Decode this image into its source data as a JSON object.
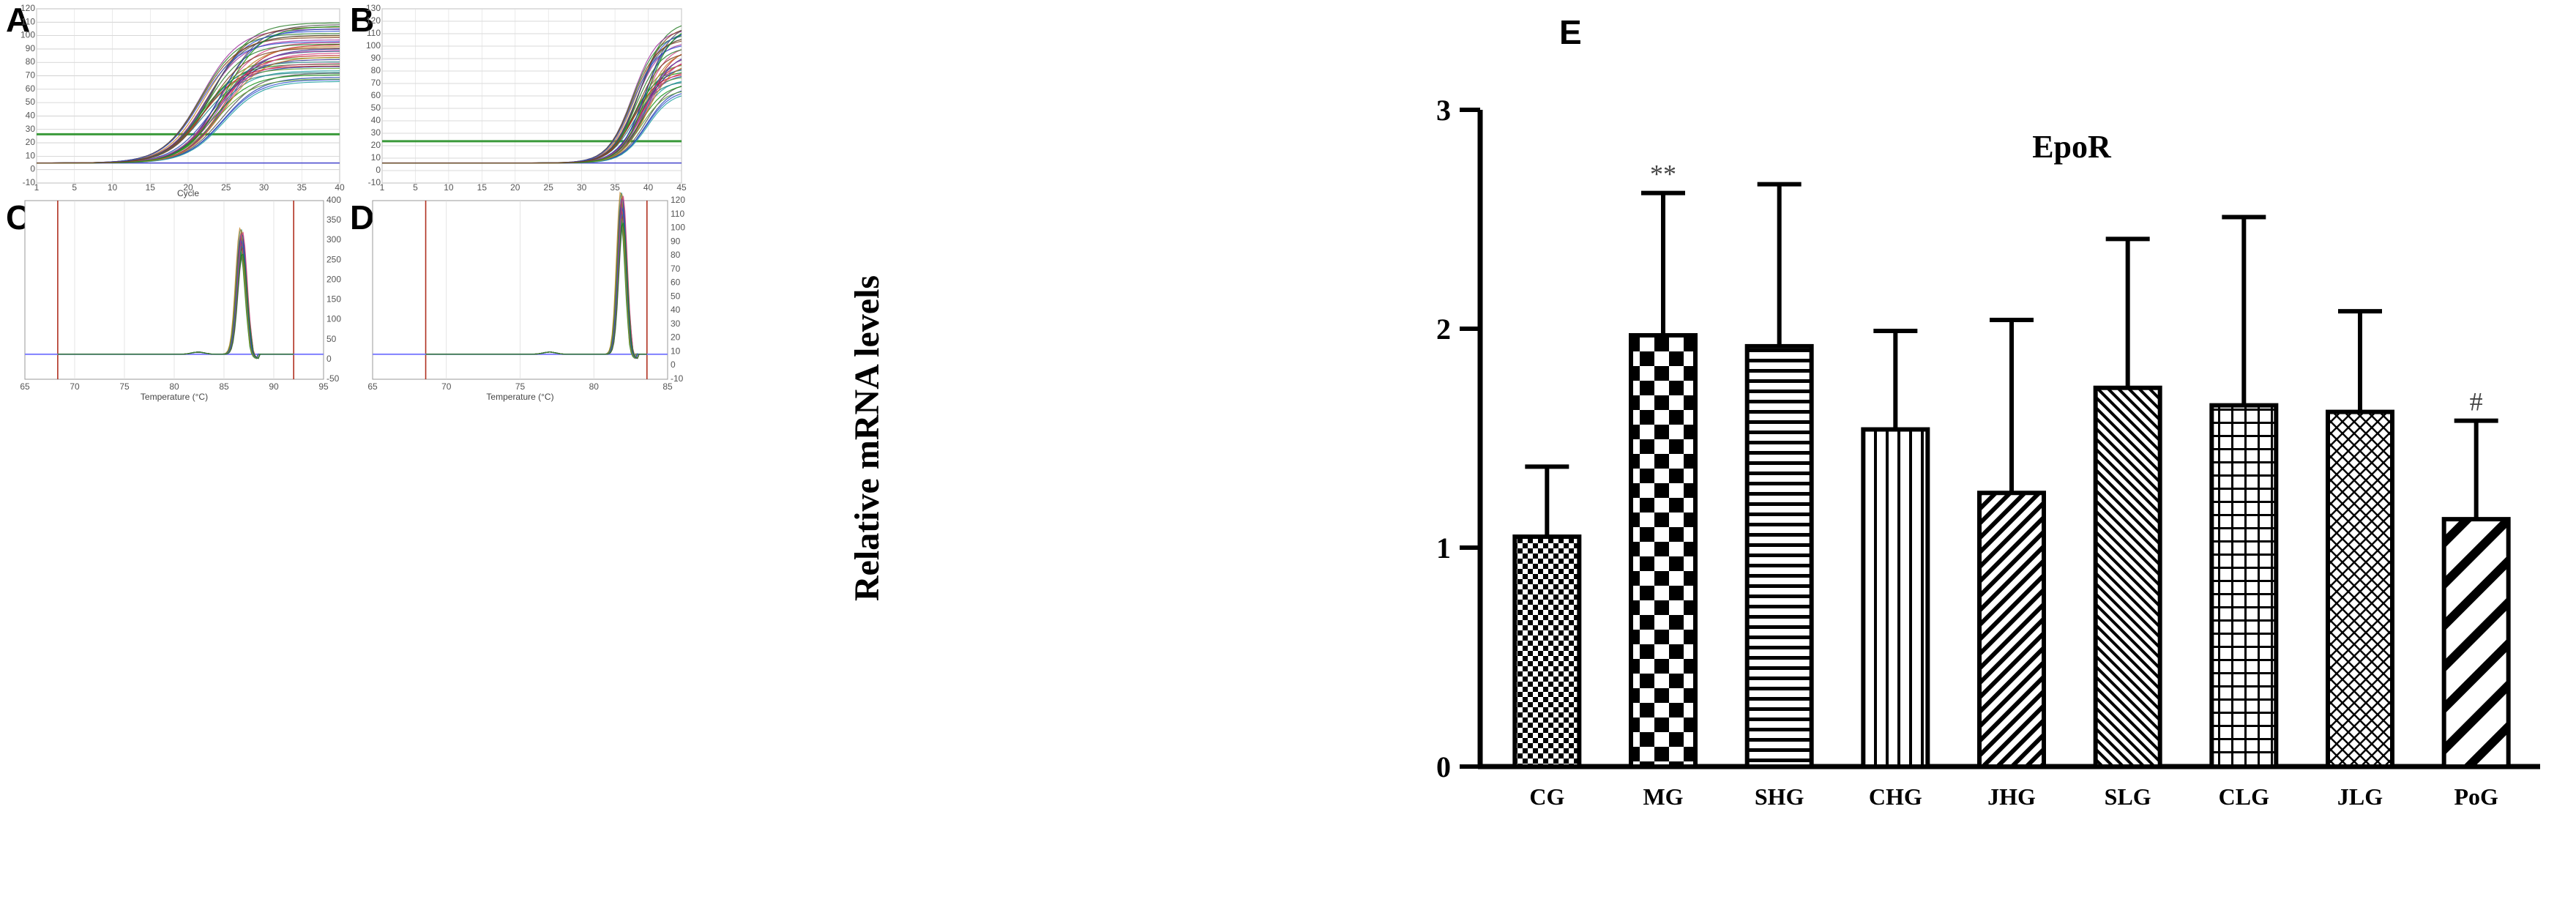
{
  "panels": {
    "A": {
      "label": "A",
      "xlabel": "Cycle",
      "xticks": [
        "1",
        "5",
        "10",
        "15",
        "20",
        "25",
        "30",
        "35",
        "40"
      ],
      "yticks": [
        "120",
        "110",
        "100",
        "90",
        "80",
        "70",
        "60",
        "50",
        "40",
        "30",
        "20",
        "10",
        "0",
        "-10"
      ]
    },
    "B": {
      "label": "B",
      "xticks": [
        "1",
        "5",
        "10",
        "15",
        "20",
        "25",
        "30",
        "35",
        "40",
        "45"
      ],
      "yticks": [
        "130",
        "120",
        "110",
        "100",
        "90",
        "80",
        "70",
        "60",
        "50",
        "40",
        "30",
        "20",
        "10",
        "0",
        "-10"
      ]
    },
    "C": {
      "label": "C",
      "xlabel": "Temperature (°C)",
      "xticks": [
        "65",
        "70",
        "75",
        "80",
        "85",
        "90",
        "95"
      ],
      "yticks": [
        "400",
        "350",
        "300",
        "250",
        "200",
        "150",
        "100",
        "50",
        "0",
        "-50"
      ]
    },
    "D": {
      "label": "D",
      "xlabel": "Temperature (°C)",
      "xticks": [
        "65",
        "70",
        "75",
        "80",
        "85"
      ],
      "yticks": [
        "120",
        "110",
        "100",
        "90",
        "80",
        "70",
        "60",
        "50",
        "40",
        "30",
        "20",
        "10",
        "0",
        "-10"
      ]
    }
  },
  "colors": {
    "threshold": "#3a9a3a",
    "baseline": "#4444cc",
    "marker": "#b03020"
  },
  "chart_data": [
    {
      "type": "bar",
      "panel": "E",
      "title": "EpoR",
      "ylabel": "Relative mRNA levels",
      "xlabel": "",
      "ylim": [
        0,
        3
      ],
      "yticks": [
        "0",
        "1",
        "2",
        "3"
      ],
      "categories": [
        "CG",
        "MG",
        "SHG",
        "CHG",
        "JHG",
        "SLG",
        "CLG",
        "JLG",
        "PoG"
      ],
      "values": [
        1.05,
        1.97,
        1.92,
        1.54,
        1.25,
        1.73,
        1.65,
        1.62,
        1.13
      ],
      "error_upper": [
        1.37,
        2.62,
        2.66,
        1.99,
        2.04,
        2.41,
        2.51,
        2.08,
        1.58
      ],
      "annotations": [
        {
          "category": "MG",
          "text": "**"
        },
        {
          "category": "PoG",
          "text": "#"
        }
      ],
      "patterns": [
        "checker-fine",
        "checker-bold",
        "horizontal",
        "vertical",
        "diagonal-left",
        "diagonal-fine",
        "grid",
        "diagonal-cross",
        "diagonal-bold"
      ],
      "grid": false,
      "panel_label": "E"
    }
  ]
}
